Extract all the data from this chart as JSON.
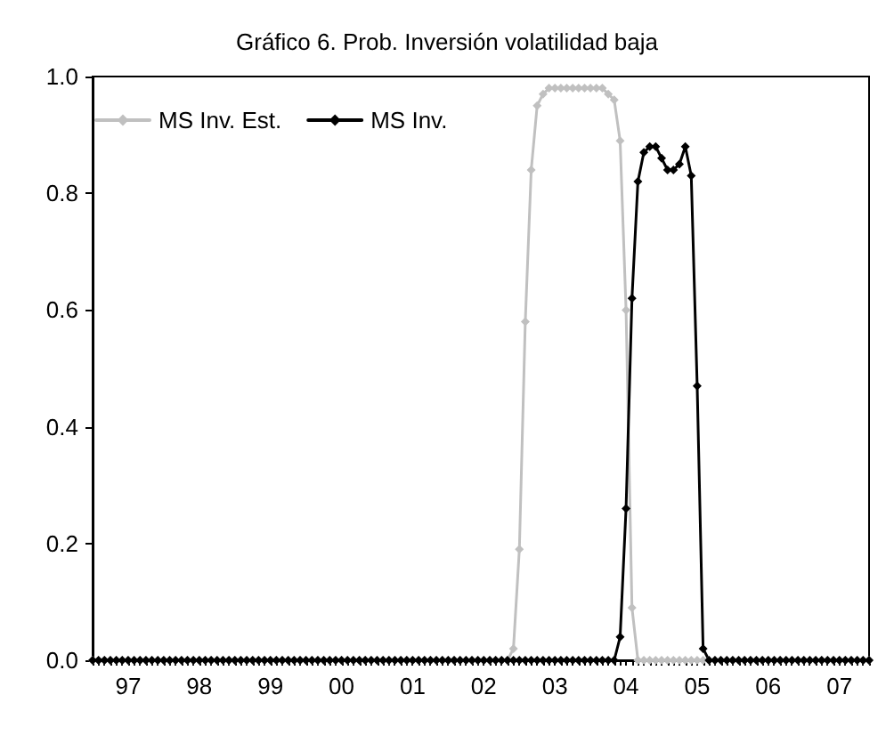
{
  "chart_data": {
    "type": "line",
    "title": "Gráfico 6. Prob. Inversión volatilidad baja",
    "categories": [
      null,
      null,
      null,
      null,
      null,
      null,
      "97",
      null,
      null,
      null,
      null,
      null,
      null,
      null,
      null,
      null,
      null,
      null,
      "98",
      null,
      null,
      null,
      null,
      null,
      null,
      null,
      null,
      null,
      null,
      null,
      "99",
      null,
      null,
      null,
      null,
      null,
      null,
      null,
      null,
      null,
      null,
      null,
      "00",
      null,
      null,
      null,
      null,
      null,
      null,
      null,
      null,
      null,
      null,
      null,
      "01",
      null,
      null,
      null,
      null,
      null,
      null,
      null,
      null,
      null,
      null,
      null,
      "02",
      null,
      null,
      null,
      null,
      null,
      null,
      null,
      null,
      null,
      null,
      null,
      "03",
      null,
      null,
      null,
      null,
      null,
      null,
      null,
      null,
      null,
      null,
      null,
      "04",
      null,
      null,
      null,
      null,
      null,
      null,
      null,
      null,
      null,
      null,
      null,
      "05",
      null,
      null,
      null,
      null,
      null,
      null,
      null,
      null,
      null,
      null,
      null,
      "06",
      null,
      null,
      null,
      null,
      null,
      null,
      null,
      null,
      null,
      null,
      null,
      "07",
      null,
      null,
      null,
      null,
      null
    ],
    "series": [
      {
        "name": "MS Inv. Est.",
        "color": "#c0c0c0",
        "values": [
          0,
          0,
          0,
          0,
          0,
          0,
          0,
          0,
          0,
          0,
          0,
          0,
          0,
          0,
          0,
          0,
          0,
          0,
          0,
          0,
          0,
          0,
          0,
          0,
          0,
          0,
          0,
          0,
          0,
          0,
          0,
          0,
          0,
          0,
          0,
          0,
          0,
          0,
          0,
          0,
          0,
          0,
          0,
          0,
          0,
          0,
          0,
          0,
          0,
          0,
          0,
          0,
          0,
          0,
          0,
          0,
          0,
          0,
          0,
          0,
          0,
          0,
          0,
          0,
          0,
          0,
          0,
          0,
          0,
          0,
          0,
          0.02,
          0.19,
          0.58,
          0.84,
          0.95,
          0.97,
          0.98,
          0.98,
          0.98,
          0.98,
          0.98,
          0.98,
          0.98,
          0.98,
          0.98,
          0.98,
          0.97,
          0.96,
          0.89,
          0.6,
          0.09,
          0,
          0,
          0,
          0,
          0,
          0,
          0,
          0,
          0,
          0,
          0,
          0,
          0,
          0,
          0,
          0,
          0,
          0,
          0,
          0,
          0,
          0,
          0,
          0,
          0,
          0,
          0,
          0,
          0,
          0,
          0,
          0,
          0,
          0,
          0,
          0,
          0,
          0,
          0,
          0
        ]
      },
      {
        "name": "MS Inv.",
        "color": "#000000",
        "values": [
          0,
          0,
          0,
          0,
          0,
          0,
          0,
          0,
          0,
          0,
          0,
          0,
          0,
          0,
          0,
          0,
          0,
          0,
          0,
          0,
          0,
          0,
          0,
          0,
          0,
          0,
          0,
          0,
          0,
          0,
          0,
          0,
          0,
          0,
          0,
          0,
          0,
          0,
          0,
          0,
          0,
          0,
          0,
          0,
          0,
          0,
          0,
          0,
          0,
          0,
          0,
          0,
          0,
          0,
          0,
          0,
          0,
          0,
          0,
          0,
          0,
          0,
          0,
          0,
          0,
          0,
          0,
          0,
          0,
          0,
          0,
          0,
          0,
          0,
          0,
          0,
          0,
          0,
          0,
          0,
          0,
          0,
          0,
          0,
          0,
          0,
          0,
          0,
          0,
          0.04,
          0.26,
          0.62,
          0.82,
          0.87,
          0.88,
          0.88,
          0.86,
          0.84,
          0.84,
          0.85,
          0.88,
          0.83,
          0.47,
          0.02,
          0,
          0,
          0,
          0,
          0,
          0,
          0,
          0,
          0,
          0,
          0,
          0,
          0,
          0,
          0,
          0,
          0,
          0,
          0,
          0,
          0,
          0,
          0,
          0,
          0,
          0,
          0,
          0
        ]
      }
    ],
    "ylim": [
      0,
      1
    ],
    "yticks": [
      {
        "value": 0,
        "label": "0.0"
      },
      {
        "value": 0.2,
        "label": "0.2"
      },
      {
        "value": 0.4,
        "label": "0.4"
      },
      {
        "value": 0.6,
        "label": "0.6"
      },
      {
        "value": 0.8,
        "label": "0.8"
      },
      {
        "value": 1,
        "label": "1.0"
      }
    ],
    "grid": false,
    "legend": "top left",
    "marker": "diamond",
    "line_style": "solid"
  }
}
